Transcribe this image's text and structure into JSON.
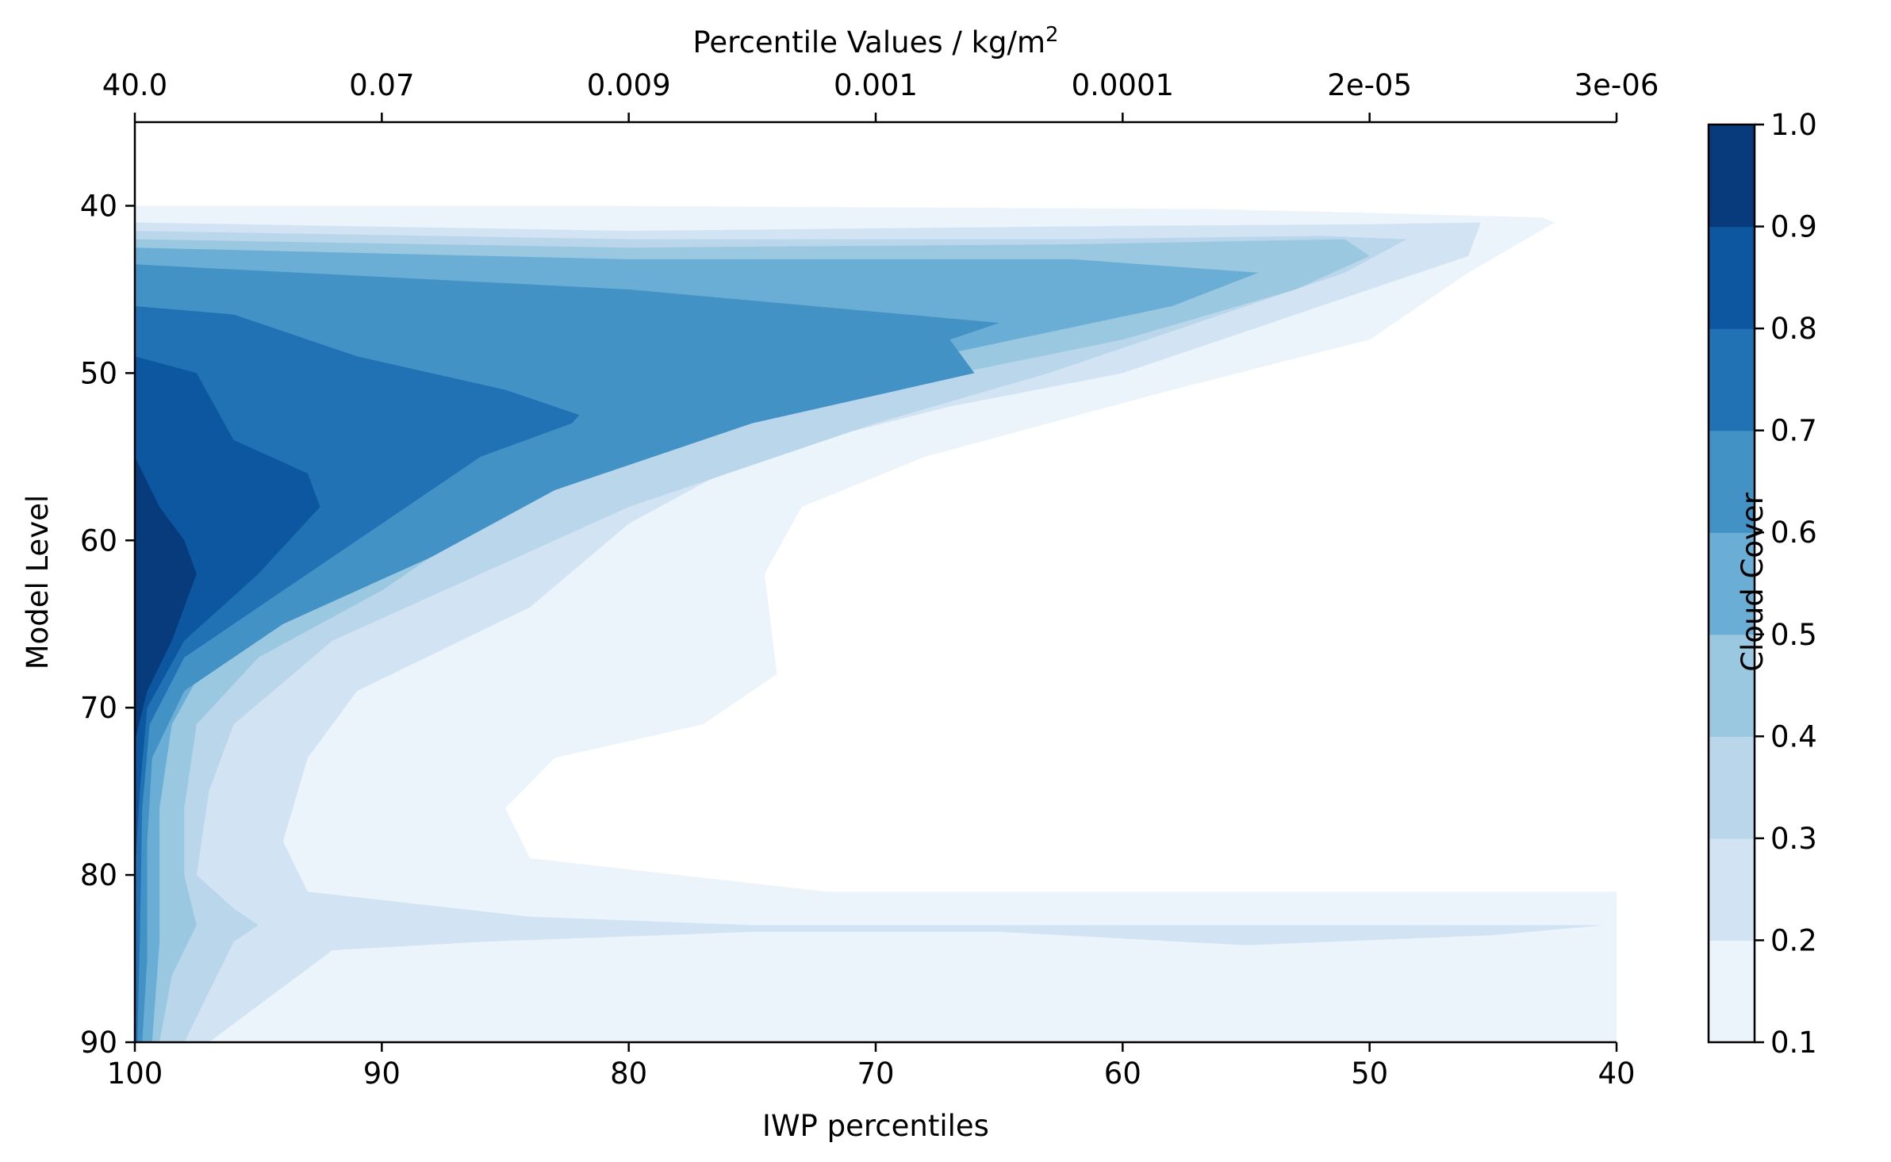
{
  "chart_data": {
    "type": "contourf",
    "title": "",
    "xlabel": "IWP percentiles",
    "ylabel": "Model Level",
    "top_xlabel": "Percentile Values / kg/m",
    "top_xlabel_sup": "2",
    "xlim": [
      100,
      40
    ],
    "ylim": [
      90,
      35
    ],
    "x_ticks": [
      100,
      90,
      80,
      70,
      60,
      50,
      40
    ],
    "x_tick_labels": [
      "100",
      "90",
      "80",
      "70",
      "60",
      "50",
      "40"
    ],
    "y_ticks": [
      40,
      50,
      60,
      70,
      80,
      90
    ],
    "y_tick_labels": [
      "40",
      "50",
      "60",
      "70",
      "80",
      "90"
    ],
    "top_x_ticks": [
      100,
      90,
      80,
      70,
      60,
      50,
      40
    ],
    "top_x_tick_labels": [
      "40.0",
      "0.07",
      "0.009",
      "0.001",
      "0.0001",
      "2e-05",
      "3e-06"
    ],
    "colorbar": {
      "label": "Cloud Cover",
      "levels": [
        0.1,
        0.2,
        0.3,
        0.4,
        0.5,
        0.6,
        0.7,
        0.8,
        0.9,
        1.0
      ],
      "tick_labels": [
        "0.1",
        "0.2",
        "0.3",
        "0.4",
        "0.5",
        "0.6",
        "0.7",
        "0.8",
        "0.9",
        "1.0"
      ],
      "colors": [
        "#ebf3fb",
        "#d2e3f3",
        "#bad6eb",
        "#9ac8e0",
        "#6aaed6",
        "#4292c6",
        "#2171b5",
        "#0d56a0",
        "#083b7c"
      ]
    },
    "series": [
      {
        "level": 0.1,
        "boundary": [
          [
            100,
            40
          ],
          [
            81,
            40
          ],
          [
            56,
            40.2
          ],
          [
            43,
            40.7
          ],
          [
            42.5,
            41
          ],
          [
            46,
            44
          ],
          [
            50,
            48
          ],
          [
            58,
            51
          ],
          [
            68,
            55
          ],
          [
            73,
            58
          ],
          [
            74.5,
            62
          ],
          [
            74,
            68
          ],
          [
            77,
            71
          ],
          [
            83,
            73
          ],
          [
            85,
            76
          ],
          [
            84,
            79
          ],
          [
            72,
            81
          ],
          [
            60,
            81
          ],
          [
            50,
            81
          ],
          [
            40,
            81
          ],
          [
            40,
            90
          ],
          [
            100,
            90
          ]
        ]
      },
      {
        "level": 0.2,
        "boundary": [
          [
            100,
            41
          ],
          [
            80,
            41.5
          ],
          [
            60,
            41.2
          ],
          [
            50,
            41.1
          ],
          [
            45.5,
            41
          ],
          [
            46,
            43
          ],
          [
            52,
            46
          ],
          [
            60,
            50
          ],
          [
            67,
            52
          ],
          [
            75,
            55
          ],
          [
            80,
            59
          ],
          [
            84,
            64
          ],
          [
            91,
            69
          ],
          [
            93,
            73
          ],
          [
            94,
            78
          ],
          [
            93,
            81
          ],
          [
            84,
            82.5
          ],
          [
            75,
            83
          ],
          [
            65,
            83
          ],
          [
            55,
            83
          ],
          [
            45,
            83
          ],
          [
            40.5,
            83
          ],
          [
            45,
            83.6
          ],
          [
            55,
            84.2
          ],
          [
            65,
            83.4
          ],
          [
            75,
            83.4
          ],
          [
            86,
            84
          ],
          [
            92,
            84.5
          ],
          [
            97,
            90
          ],
          [
            100,
            90
          ]
        ]
      },
      {
        "level": 0.3,
        "boundary": [
          [
            100,
            41.5
          ],
          [
            80,
            42
          ],
          [
            62,
            42
          ],
          [
            52,
            41.8
          ],
          [
            48.5,
            42
          ],
          [
            51,
            44
          ],
          [
            57,
            47
          ],
          [
            63,
            50
          ],
          [
            70,
            53
          ],
          [
            80,
            58
          ],
          [
            86,
            62
          ],
          [
            92,
            66
          ],
          [
            96,
            71
          ],
          [
            97,
            75
          ],
          [
            97.5,
            80
          ],
          [
            96,
            82
          ],
          [
            95,
            83
          ],
          [
            96,
            84
          ],
          [
            98,
            90
          ],
          [
            100,
            90
          ]
        ]
      },
      {
        "level": 0.4,
        "boundary": [
          [
            100,
            42
          ],
          [
            80,
            42.5
          ],
          [
            62,
            42.3
          ],
          [
            51,
            42
          ],
          [
            50,
            43
          ],
          [
            53,
            45
          ],
          [
            60,
            48
          ],
          [
            70,
            51
          ],
          [
            80,
            55
          ],
          [
            86,
            59
          ],
          [
            90,
            63
          ],
          [
            95,
            67
          ],
          [
            97.5,
            71
          ],
          [
            98,
            76
          ],
          [
            98,
            80
          ],
          [
            97.5,
            83
          ],
          [
            98.5,
            86
          ],
          [
            99,
            90
          ],
          [
            100,
            90
          ]
        ]
      },
      {
        "level": 0.5,
        "boundary": [
          [
            100,
            42.5
          ],
          [
            80,
            43.2
          ],
          [
            62,
            43.2
          ],
          [
            54.5,
            44
          ],
          [
            58,
            46
          ],
          [
            66,
            48.5
          ],
          [
            74,
            51
          ],
          [
            82,
            55
          ],
          [
            88,
            59
          ],
          [
            93,
            63
          ],
          [
            97,
            67
          ],
          [
            98.5,
            71
          ],
          [
            99,
            76
          ],
          [
            99,
            80
          ],
          [
            99,
            84
          ],
          [
            99.3,
            90
          ],
          [
            100,
            90
          ]
        ]
      },
      {
        "level": 0.6,
        "boundary": [
          [
            100,
            43.5
          ],
          [
            80,
            45
          ],
          [
            65,
            47
          ],
          [
            67,
            48
          ],
          [
            66,
            50
          ],
          [
            75,
            53
          ],
          [
            83,
            57
          ],
          [
            88,
            61
          ],
          [
            94,
            65
          ],
          [
            98,
            69
          ],
          [
            99.3,
            73
          ],
          [
            99.5,
            78
          ],
          [
            99.5,
            85
          ],
          [
            99.7,
            90
          ],
          [
            100,
            90
          ]
        ]
      },
      {
        "level": 0.7,
        "boundary": [
          [
            100,
            46
          ],
          [
            96,
            46.5
          ],
          [
            91,
            49
          ],
          [
            85,
            51
          ],
          [
            82,
            52.5
          ],
          [
            82.3,
            53
          ],
          [
            86,
            55
          ],
          [
            89,
            58
          ],
          [
            94,
            63
          ],
          [
            98,
            67
          ],
          [
            99.4,
            71
          ],
          [
            99.7,
            76
          ],
          [
            99.8,
            84
          ],
          [
            99.9,
            90
          ],
          [
            100,
            90
          ]
        ]
      },
      {
        "level": 0.8,
        "boundary": [
          [
            100,
            49
          ],
          [
            97.5,
            50
          ],
          [
            96,
            54
          ],
          [
            93,
            56
          ],
          [
            92.5,
            58
          ],
          [
            95,
            62
          ],
          [
            98,
            66
          ],
          [
            99.5,
            70
          ],
          [
            99.8,
            75
          ],
          [
            100,
            80
          ]
        ]
      },
      {
        "level": 0.9,
        "boundary": [
          [
            100,
            55
          ],
          [
            99,
            58
          ],
          [
            98,
            60
          ],
          [
            97.5,
            62
          ],
          [
            98.5,
            66
          ],
          [
            99.5,
            69
          ],
          [
            100,
            72
          ]
        ]
      }
    ]
  }
}
